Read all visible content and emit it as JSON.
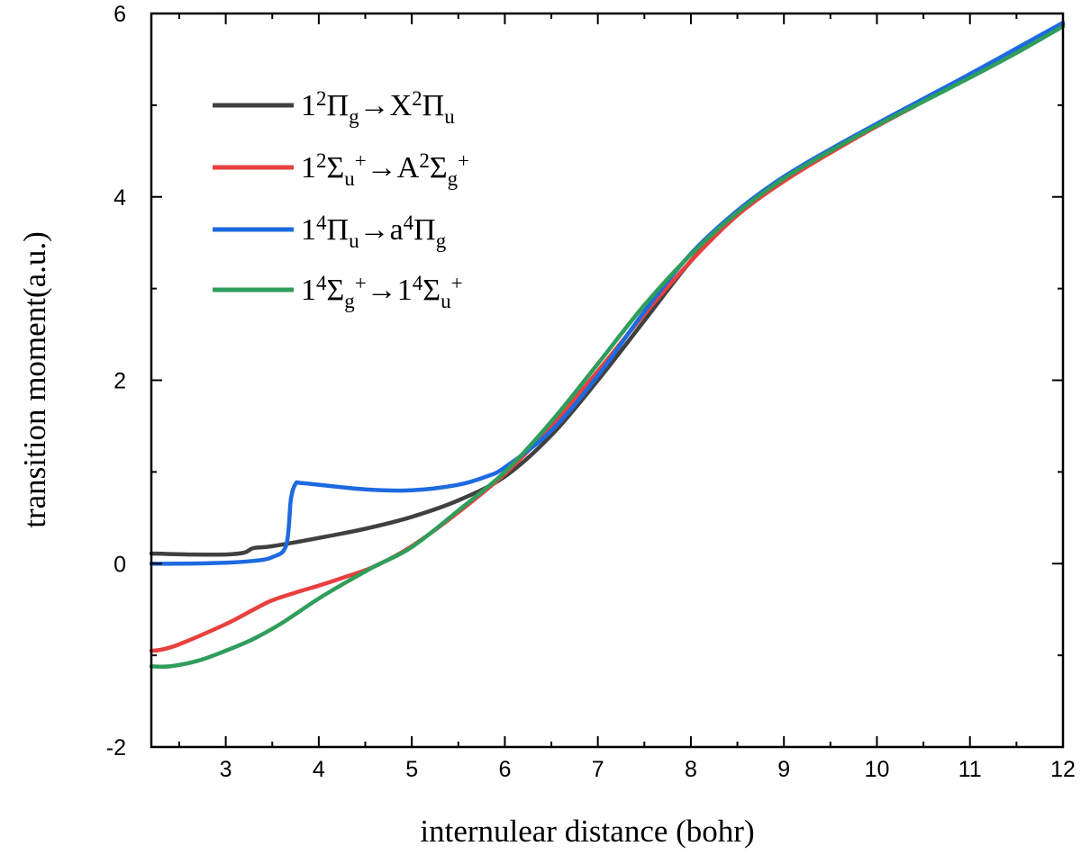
{
  "chart_data": {
    "type": "line",
    "title": "",
    "xlabel": "internulear distance (bohr)",
    "ylabel": "transition moment(a.u.)",
    "xlim": [
      2.2,
      12
    ],
    "ylim": [
      -2,
      6
    ],
    "xticks": [
      3,
      4,
      5,
      6,
      7,
      8,
      9,
      10,
      11,
      12
    ],
    "yticks": [
      -2,
      0,
      2,
      4,
      6
    ],
    "legend_position": "top-left",
    "grid": false,
    "series": [
      {
        "name": "1²Π_g→X²Π_u",
        "legend": [
          {
            "t": "1"
          },
          {
            "t": "2",
            "sup": true
          },
          {
            "t": "Π"
          },
          {
            "t": "g",
            "sub": true
          },
          {
            "t": "→X"
          },
          {
            "t": "2",
            "sup": true
          },
          {
            "t": "Π"
          },
          {
            "t": "u",
            "sub": true
          }
        ],
        "color": "#404040",
        "x": [
          2.2,
          2.6,
          3.0,
          3.2,
          3.3,
          3.5,
          4.0,
          4.5,
          5.0,
          5.5,
          6.0,
          6.5,
          7.0,
          7.5,
          8.0,
          8.5,
          9.0,
          9.5,
          10.0,
          10.5,
          11.0,
          11.5,
          12.0
        ],
        "y": [
          0.11,
          0.1,
          0.1,
          0.12,
          0.17,
          0.19,
          0.28,
          0.38,
          0.51,
          0.69,
          0.95,
          1.4,
          2.0,
          2.65,
          3.3,
          3.82,
          4.2,
          4.5,
          4.78,
          5.05,
          5.32,
          5.6,
          5.88
        ]
      },
      {
        "name": "1²Σ_u⁺→A²Σ_g⁺",
        "legend": [
          {
            "t": "1"
          },
          {
            "t": "2",
            "sup": true
          },
          {
            "t": "Σ"
          },
          {
            "t": "u",
            "sub": true
          },
          {
            "t": "+",
            "sup": true
          },
          {
            "t": "→A"
          },
          {
            "t": "2",
            "sup": true
          },
          {
            "t": "Σ"
          },
          {
            "t": "g",
            "sub": true
          },
          {
            "t": "+",
            "sup": true
          }
        ],
        "color": "#e8403f",
        "x": [
          2.2,
          2.3,
          2.5,
          3.0,
          3.3,
          3.5,
          3.8,
          4.0,
          4.3,
          4.6,
          5.0,
          5.5,
          6.0,
          6.5,
          7.0,
          7.5,
          8.0,
          8.5,
          9.0,
          9.5,
          10.0,
          10.5,
          11.0,
          11.5,
          12.0
        ],
        "y": [
          -0.95,
          -0.94,
          -0.88,
          -0.66,
          -0.5,
          -0.4,
          -0.3,
          -0.24,
          -0.14,
          -0.03,
          0.19,
          0.56,
          0.98,
          1.5,
          2.1,
          2.72,
          3.3,
          3.8,
          4.17,
          4.48,
          4.77,
          5.04,
          5.31,
          5.58,
          5.86
        ]
      },
      {
        "name": "1⁴Π_u→a⁴Π_g",
        "legend": [
          {
            "t": "1"
          },
          {
            "t": "4",
            "sup": true
          },
          {
            "t": "Π"
          },
          {
            "t": "u",
            "sub": true
          },
          {
            "t": "→a"
          },
          {
            "t": "4",
            "sup": true
          },
          {
            "t": "Π"
          },
          {
            "t": "g",
            "sub": true
          }
        ],
        "color": "#1e6ae0",
        "x": [
          2.2,
          2.5,
          3.0,
          3.3,
          3.5,
          3.65,
          3.7,
          3.75,
          3.8,
          4.0,
          4.5,
          5.0,
          5.5,
          5.8,
          6.0,
          6.5,
          7.0,
          7.5,
          8.0,
          8.5,
          9.0,
          9.5,
          10.0,
          10.5,
          11.0,
          11.5,
          12.0
        ],
        "y": [
          0.0,
          0.0,
          0.01,
          0.03,
          0.07,
          0.2,
          0.7,
          0.87,
          0.88,
          0.86,
          0.81,
          0.8,
          0.86,
          0.95,
          1.05,
          1.45,
          2.05,
          2.75,
          3.38,
          3.85,
          4.22,
          4.52,
          4.8,
          5.07,
          5.34,
          5.62,
          5.9
        ]
      },
      {
        "name": "1⁴Σ_g⁺→1⁴Σ_u⁺",
        "legend": [
          {
            "t": "1"
          },
          {
            "t": "4",
            "sup": true
          },
          {
            "t": "Σ"
          },
          {
            "t": "g",
            "sub": true
          },
          {
            "t": "+",
            "sup": true
          },
          {
            "t": "→1"
          },
          {
            "t": "4",
            "sup": true
          },
          {
            "t": "Σ"
          },
          {
            "t": "u",
            "sub": true
          },
          {
            "t": "+",
            "sup": true
          }
        ],
        "color": "#2f9e5b",
        "x": [
          2.2,
          2.4,
          2.7,
          3.0,
          3.3,
          3.6,
          4.0,
          4.3,
          4.6,
          5.0,
          5.5,
          6.0,
          6.5,
          7.0,
          7.5,
          8.0,
          8.5,
          9.0,
          9.5,
          10.0,
          10.5,
          11.0,
          11.5,
          12.0
        ],
        "y": [
          -1.12,
          -1.12,
          -1.06,
          -0.95,
          -0.82,
          -0.65,
          -0.38,
          -0.2,
          -0.03,
          0.18,
          0.58,
          1.0,
          1.55,
          2.18,
          2.82,
          3.37,
          3.83,
          4.2,
          4.5,
          4.78,
          5.04,
          5.3,
          5.57,
          5.86
        ]
      }
    ]
  }
}
